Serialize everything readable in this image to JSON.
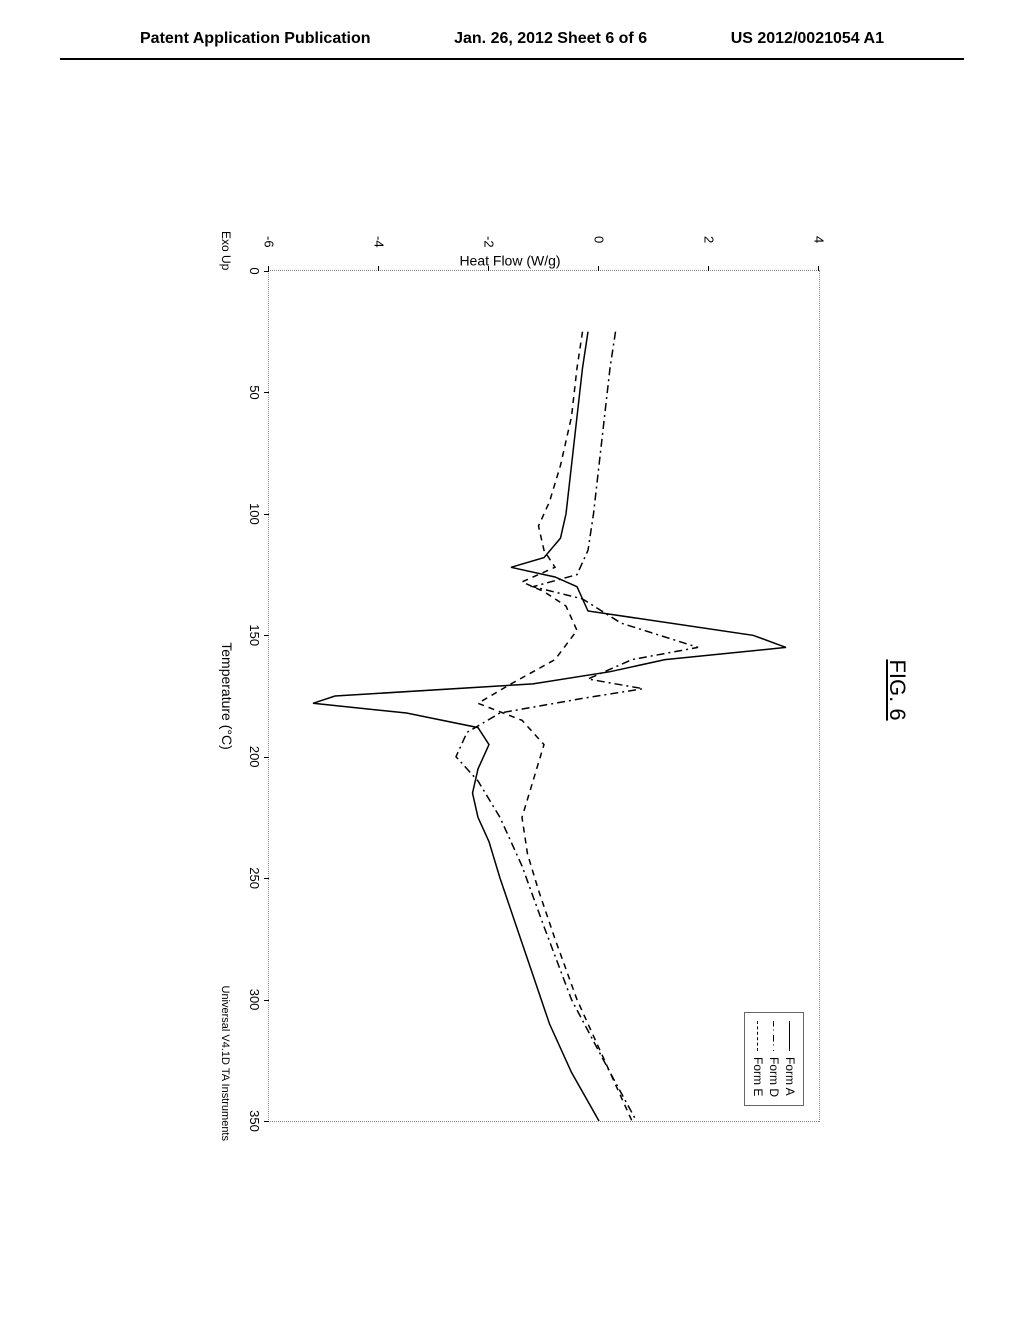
{
  "header": {
    "left": "Patent Application Publication",
    "center": "Jan. 26, 2012  Sheet 6 of 6",
    "right": "US 2012/0021054 A1"
  },
  "figure": {
    "title": "FIG. 6",
    "chart": {
      "type": "line",
      "xlabel": "Temperature (°C)",
      "ylabel": "Heat Flow (W/g)",
      "exo_label": "Exo Up",
      "software_label": "Universal V4.1D TA Instruments",
      "xlim": [
        0,
        350
      ],
      "ylim": [
        -6,
        4
      ],
      "xtick_step": 50,
      "ytick_step": 2,
      "xticks": [
        0,
        50,
        100,
        150,
        200,
        250,
        300,
        350
      ],
      "yticks": [
        -6,
        -4,
        -2,
        0,
        2,
        4
      ],
      "background_color": "#ffffff",
      "border_style": "dotted",
      "border_color": "#888888",
      "legend": {
        "position": "top-right",
        "items": [
          {
            "label": "Form A",
            "style": "solid",
            "color": "#000000"
          },
          {
            "label": "Form D",
            "style": "dash-dot",
            "color": "#000000"
          },
          {
            "label": "Form E",
            "style": "dashed",
            "color": "#000000"
          }
        ]
      },
      "series": [
        {
          "name": "Form A",
          "style": "solid",
          "color": "#000000",
          "line_width": 1.5,
          "points": [
            [
              25,
              -0.2
            ],
            [
              40,
              -0.3
            ],
            [
              60,
              -0.4
            ],
            [
              80,
              -0.5
            ],
            [
              100,
              -0.6
            ],
            [
              110,
              -0.7
            ],
            [
              118,
              -1.0
            ],
            [
              122,
              -1.6
            ],
            [
              126,
              -0.8
            ],
            [
              130,
              -0.4
            ],
            [
              140,
              -0.2
            ],
            [
              150,
              2.8
            ],
            [
              155,
              3.4
            ],
            [
              160,
              1.2
            ],
            [
              165,
              0.2
            ],
            [
              170,
              -1.2
            ],
            [
              175,
              -4.8
            ],
            [
              178,
              -5.2
            ],
            [
              182,
              -3.5
            ],
            [
              188,
              -2.2
            ],
            [
              195,
              -2.0
            ],
            [
              205,
              -2.2
            ],
            [
              215,
              -2.3
            ],
            [
              225,
              -2.2
            ],
            [
              235,
              -2.0
            ],
            [
              250,
              -1.8
            ],
            [
              270,
              -1.5
            ],
            [
              290,
              -1.2
            ],
            [
              310,
              -0.9
            ],
            [
              330,
              -0.5
            ],
            [
              350,
              0.0
            ]
          ]
        },
        {
          "name": "Form D",
          "style": "dash-dot",
          "color": "#000000",
          "line_width": 1.5,
          "points": [
            [
              25,
              0.3
            ],
            [
              40,
              0.2
            ],
            [
              60,
              0.1
            ],
            [
              80,
              0.0
            ],
            [
              100,
              -0.1
            ],
            [
              115,
              -0.2
            ],
            [
              125,
              -0.4
            ],
            [
              130,
              -1.2
            ],
            [
              135,
              -0.3
            ],
            [
              145,
              0.4
            ],
            [
              155,
              1.8
            ],
            [
              160,
              0.6
            ],
            [
              168,
              -0.2
            ],
            [
              172,
              0.8
            ],
            [
              176,
              -0.3
            ],
            [
              182,
              -1.8
            ],
            [
              190,
              -2.4
            ],
            [
              200,
              -2.6
            ],
            [
              210,
              -2.2
            ],
            [
              225,
              -1.8
            ],
            [
              245,
              -1.4
            ],
            [
              270,
              -1.0
            ],
            [
              300,
              -0.5
            ],
            [
              330,
              0.2
            ],
            [
              355,
              0.8
            ]
          ]
        },
        {
          "name": "Form E",
          "style": "dashed",
          "color": "#000000",
          "line_width": 1.5,
          "points": [
            [
              25,
              -0.3
            ],
            [
              40,
              -0.4
            ],
            [
              60,
              -0.5
            ],
            [
              80,
              -0.7
            ],
            [
              95,
              -0.9
            ],
            [
              105,
              -1.1
            ],
            [
              115,
              -1.0
            ],
            [
              122,
              -0.8
            ],
            [
              128,
              -1.4
            ],
            [
              132,
              -1.0
            ],
            [
              138,
              -0.6
            ],
            [
              148,
              -0.4
            ],
            [
              160,
              -0.8
            ],
            [
              170,
              -1.6
            ],
            [
              178,
              -2.2
            ],
            [
              185,
              -1.4
            ],
            [
              195,
              -1.0
            ],
            [
              210,
              -1.2
            ],
            [
              225,
              -1.4
            ],
            [
              240,
              -1.3
            ],
            [
              255,
              -1.1
            ],
            [
              275,
              -0.8
            ],
            [
              300,
              -0.4
            ],
            [
              325,
              0.1
            ],
            [
              350,
              0.6
            ]
          ]
        }
      ]
    }
  }
}
